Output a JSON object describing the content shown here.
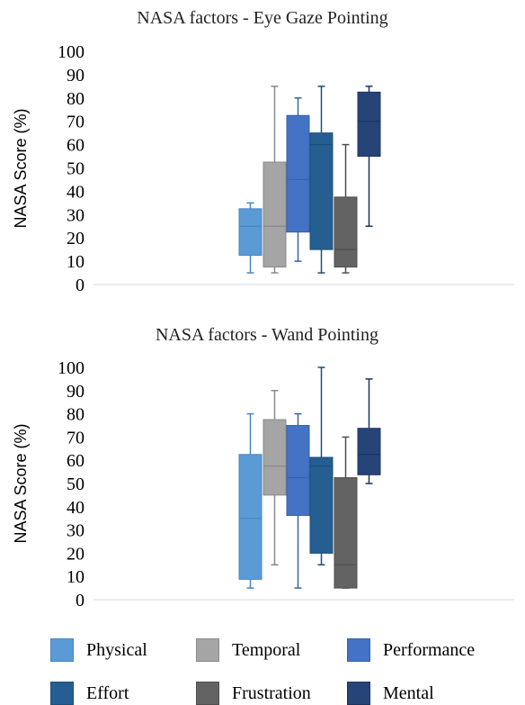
{
  "chart_data": [
    {
      "type": "boxplot",
      "title": "NASA factors - Eye Gaze Pointing",
      "ylabel": "NASA Score (%)",
      "ylim": [
        0,
        100
      ],
      "yticks": [
        "0",
        "10",
        "20",
        "30",
        "40",
        "50",
        "60",
        "70",
        "80",
        "90",
        "100"
      ],
      "grid": false,
      "series": [
        {
          "name": "Physical",
          "min": 5,
          "q1": 12.5,
          "median": 25,
          "q3": 32.5,
          "max": 35
        },
        {
          "name": "Temporal",
          "min": 5,
          "q1": 7.5,
          "median": 25,
          "q3": 52.5,
          "max": 85
        },
        {
          "name": "Performance",
          "min": 10,
          "q1": 22.5,
          "median": 45,
          "q3": 72.5,
          "max": 80
        },
        {
          "name": "Effort",
          "min": 5,
          "q1": 15,
          "median": 60,
          "q3": 65,
          "max": 85
        },
        {
          "name": "Frustration",
          "min": 5,
          "q1": 7.5,
          "median": 15,
          "q3": 37.5,
          "max": 60
        },
        {
          "name": "Mental",
          "min": 25,
          "q1": 55,
          "median": 70,
          "q3": 82.5,
          "max": 85
        }
      ]
    },
    {
      "type": "boxplot",
      "title": "NASA factors - Wand Pointing",
      "ylabel": "NASA Score (%)",
      "ylim": [
        0,
        100
      ],
      "yticks": [
        "0",
        "10",
        "20",
        "30",
        "40",
        "50",
        "60",
        "70",
        "80",
        "90",
        "100"
      ],
      "grid": false,
      "series": [
        {
          "name": "Physical",
          "min": 5,
          "q1": 8.75,
          "median": 35,
          "q3": 62.5,
          "max": 80
        },
        {
          "name": "Temporal",
          "min": 15,
          "q1": 45,
          "median": 57.5,
          "q3": 77.5,
          "max": 90
        },
        {
          "name": "Performance",
          "min": 5,
          "q1": 36.25,
          "median": 52.5,
          "q3": 75,
          "max": 80
        },
        {
          "name": "Effort",
          "min": 15,
          "q1": 20,
          "median": 57.5,
          "q3": 61.25,
          "max": 100
        },
        {
          "name": "Frustration",
          "min": 5,
          "q1": 5,
          "median": 15,
          "q3": 52.5,
          "max": 70
        },
        {
          "name": "Mental",
          "min": 50,
          "q1": 53.75,
          "median": 62.5,
          "q3": 73.75,
          "max": 95
        }
      ]
    }
  ],
  "legend": {
    "placement": "bottom",
    "items": [
      {
        "label": "Physical",
        "fill": "#5b9bd5",
        "stroke": "#4a86c0"
      },
      {
        "label": "Temporal",
        "fill": "#a5a5a5",
        "stroke": "#8a8a8a"
      },
      {
        "label": "Performance",
        "fill": "#4472c4",
        "stroke": "#3862ad"
      },
      {
        "label": "Effort",
        "fill": "#255e91",
        "stroke": "#1e4f7a"
      },
      {
        "label": "Frustration",
        "fill": "#636363",
        "stroke": "#4f4f4f"
      },
      {
        "label": "Mental",
        "fill": "#264478",
        "stroke": "#1c345c"
      }
    ]
  }
}
